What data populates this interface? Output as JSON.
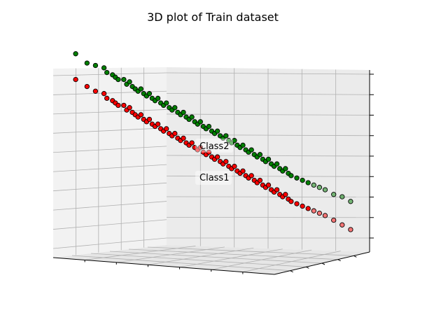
{
  "chart_data": {
    "type": "scatter",
    "projection": "3d",
    "title": "3D plot of Train dataset",
    "grid": true,
    "tick_labels_visible": false,
    "point_style": {
      "edgecolor": "#000000",
      "alpha_far": 0.5
    },
    "series": [
      {
        "name": "Class2",
        "color": "#008000",
        "points": [
          [
            0.02,
            0.95
          ],
          [
            0.06,
            0.91
          ],
          [
            0.09,
            0.9
          ],
          [
            0.12,
            0.89
          ],
          [
            0.13,
            0.87
          ],
          [
            0.15,
            0.86
          ],
          [
            0.16,
            0.85
          ],
          [
            0.17,
            0.84
          ],
          [
            0.19,
            0.84
          ],
          [
            0.2,
            0.82
          ],
          [
            0.21,
            0.83
          ],
          [
            0.22,
            0.81
          ],
          [
            0.23,
            0.8
          ],
          [
            0.24,
            0.79
          ],
          [
            0.25,
            0.8
          ],
          [
            0.26,
            0.78
          ],
          [
            0.27,
            0.77
          ],
          [
            0.28,
            0.78
          ],
          [
            0.29,
            0.76
          ],
          [
            0.3,
            0.75
          ],
          [
            0.31,
            0.76
          ],
          [
            0.32,
            0.74
          ],
          [
            0.33,
            0.73
          ],
          [
            0.34,
            0.74
          ],
          [
            0.35,
            0.72
          ],
          [
            0.36,
            0.71
          ],
          [
            0.37,
            0.72
          ],
          [
            0.38,
            0.7
          ],
          [
            0.39,
            0.69
          ],
          [
            0.4,
            0.7
          ],
          [
            0.41,
            0.68
          ],
          [
            0.42,
            0.67
          ],
          [
            0.43,
            0.68
          ],
          [
            0.44,
            0.66
          ],
          [
            0.45,
            0.65
          ],
          [
            0.46,
            0.66
          ],
          [
            0.47,
            0.64
          ],
          [
            0.48,
            0.63
          ],
          [
            0.49,
            0.64
          ],
          [
            0.5,
            0.62
          ],
          [
            0.51,
            0.61
          ],
          [
            0.52,
            0.62
          ],
          [
            0.53,
            0.6
          ],
          [
            0.54,
            0.59
          ],
          [
            0.55,
            0.6
          ],
          [
            0.56,
            0.58
          ],
          [
            0.57,
            0.57
          ],
          [
            0.58,
            0.58
          ],
          [
            0.59,
            0.56
          ],
          [
            0.6,
            0.55
          ],
          [
            0.61,
            0.56
          ],
          [
            0.62,
            0.54
          ],
          [
            0.63,
            0.53
          ],
          [
            0.64,
            0.54
          ],
          [
            0.65,
            0.52
          ],
          [
            0.66,
            0.51
          ],
          [
            0.67,
            0.52
          ],
          [
            0.68,
            0.5
          ],
          [
            0.69,
            0.49
          ],
          [
            0.7,
            0.5
          ],
          [
            0.71,
            0.48
          ],
          [
            0.72,
            0.47
          ],
          [
            0.73,
            0.48
          ],
          [
            0.74,
            0.46
          ],
          [
            0.75,
            0.45
          ],
          [
            0.76,
            0.46
          ],
          [
            0.77,
            0.44
          ],
          [
            0.78,
            0.43
          ],
          [
            0.8,
            0.42
          ],
          [
            0.82,
            0.41
          ],
          [
            0.84,
            0.4
          ],
          [
            0.86,
            0.39
          ],
          [
            0.88,
            0.38
          ],
          [
            0.9,
            0.37
          ],
          [
            0.93,
            0.35
          ],
          [
            0.96,
            0.34
          ],
          [
            0.99,
            0.32
          ]
        ]
      },
      {
        "name": "Class1",
        "color": "#ff0000",
        "points": [
          [
            0.02,
            0.84
          ],
          [
            0.06,
            0.81
          ],
          [
            0.09,
            0.79
          ],
          [
            0.12,
            0.78
          ],
          [
            0.13,
            0.76
          ],
          [
            0.15,
            0.75
          ],
          [
            0.16,
            0.74
          ],
          [
            0.17,
            0.73
          ],
          [
            0.19,
            0.73
          ],
          [
            0.2,
            0.71
          ],
          [
            0.21,
            0.72
          ],
          [
            0.22,
            0.7
          ],
          [
            0.23,
            0.69
          ],
          [
            0.24,
            0.68
          ],
          [
            0.25,
            0.69
          ],
          [
            0.26,
            0.67
          ],
          [
            0.27,
            0.66
          ],
          [
            0.28,
            0.67
          ],
          [
            0.29,
            0.65
          ],
          [
            0.3,
            0.64
          ],
          [
            0.31,
            0.65
          ],
          [
            0.32,
            0.63
          ],
          [
            0.33,
            0.62
          ],
          [
            0.34,
            0.63
          ],
          [
            0.35,
            0.61
          ],
          [
            0.36,
            0.6
          ],
          [
            0.37,
            0.61
          ],
          [
            0.38,
            0.59
          ],
          [
            0.39,
            0.58
          ],
          [
            0.4,
            0.59
          ],
          [
            0.41,
            0.57
          ],
          [
            0.42,
            0.56
          ],
          [
            0.43,
            0.57
          ],
          [
            0.44,
            0.55
          ],
          [
            0.45,
            0.54
          ],
          [
            0.46,
            0.55
          ],
          [
            0.47,
            0.53
          ],
          [
            0.48,
            0.52
          ],
          [
            0.49,
            0.53
          ],
          [
            0.5,
            0.51
          ],
          [
            0.51,
            0.5
          ],
          [
            0.52,
            0.51
          ],
          [
            0.53,
            0.49
          ],
          [
            0.54,
            0.48
          ],
          [
            0.55,
            0.49
          ],
          [
            0.56,
            0.47
          ],
          [
            0.57,
            0.46
          ],
          [
            0.58,
            0.47
          ],
          [
            0.59,
            0.45
          ],
          [
            0.6,
            0.44
          ],
          [
            0.61,
            0.45
          ],
          [
            0.62,
            0.43
          ],
          [
            0.63,
            0.42
          ],
          [
            0.64,
            0.43
          ],
          [
            0.65,
            0.41
          ],
          [
            0.66,
            0.4
          ],
          [
            0.67,
            0.41
          ],
          [
            0.68,
            0.39
          ],
          [
            0.69,
            0.38
          ],
          [
            0.7,
            0.39
          ],
          [
            0.71,
            0.37
          ],
          [
            0.72,
            0.36
          ],
          [
            0.73,
            0.37
          ],
          [
            0.74,
            0.35
          ],
          [
            0.75,
            0.34
          ],
          [
            0.76,
            0.35
          ],
          [
            0.77,
            0.33
          ],
          [
            0.78,
            0.32
          ],
          [
            0.8,
            0.31
          ],
          [
            0.82,
            0.3
          ],
          [
            0.84,
            0.29
          ],
          [
            0.86,
            0.28
          ],
          [
            0.88,
            0.27
          ],
          [
            0.9,
            0.26
          ],
          [
            0.93,
            0.24
          ],
          [
            0.96,
            0.22
          ],
          [
            0.99,
            0.2
          ]
        ]
      }
    ],
    "annotations": [
      "Class2",
      "Class1"
    ]
  }
}
